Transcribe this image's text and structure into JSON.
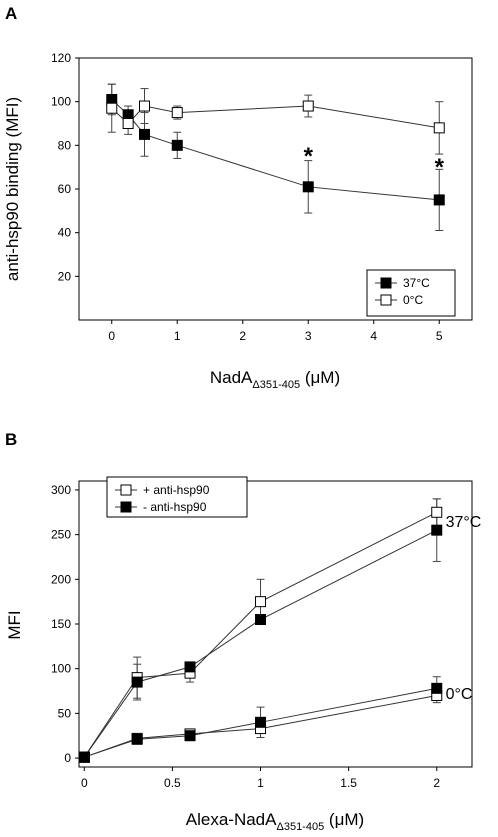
{
  "chart_data": [
    {
      "panel": "A",
      "type": "line",
      "ylabel": "anti-hsp90 binding (MFI)",
      "xlabel_main": "NadA",
      "xlabel_sub": "Δ351-405",
      "xlabel_unit": " (μM)",
      "xlim": [
        -0.5,
        5.5
      ],
      "ylim": [
        0,
        120
      ],
      "xticks": [
        0,
        1,
        2,
        3,
        4,
        5
      ],
      "yticks": [
        20,
        40,
        60,
        80,
        100,
        120
      ],
      "legend_position": "bottom-right",
      "series": [
        {
          "name": "37°C",
          "marker": "filled-square",
          "x": [
            0,
            0.25,
            0.5,
            1,
            3,
            5
          ],
          "y": [
            101,
            94,
            85,
            80,
            61,
            55
          ],
          "err": [
            7,
            4,
            10,
            6,
            12,
            14
          ]
        },
        {
          "name": "0°C",
          "marker": "open-square",
          "x": [
            0,
            0.25,
            0.5,
            1,
            3,
            5
          ],
          "y": [
            97,
            90,
            98,
            95,
            98,
            88
          ],
          "err": [
            11,
            5,
            8,
            3,
            5,
            12
          ]
        }
      ],
      "annotations": [
        {
          "text": "*",
          "x": 3,
          "y": 77
        },
        {
          "text": "*",
          "x": 5,
          "y": 72
        }
      ]
    },
    {
      "panel": "B",
      "type": "line",
      "ylabel": "MFI",
      "xlabel_main": "Alexa-NadA",
      "xlabel_sub": "Δ351-405",
      "xlabel_unit": " (μM)",
      "xlim": [
        -0.03,
        2.2
      ],
      "ylim": [
        -10,
        310
      ],
      "xticks": [
        0,
        0.5,
        1,
        1.5,
        2
      ],
      "yticks": [
        0,
        50,
        100,
        150,
        200,
        250,
        300
      ],
      "legend_position": "top-left",
      "legend": [
        "+ anti-hsp90",
        "- anti-hsp90"
      ],
      "series": [
        {
          "name": "+ anti-hsp90",
          "group": "37°C",
          "marker": "open-square",
          "x": [
            0,
            0.3,
            0.6,
            1,
            2
          ],
          "y": [
            1,
            90,
            95,
            175,
            275
          ],
          "err": [
            0,
            23,
            10,
            25,
            15
          ]
        },
        {
          "name": "- anti-hsp90",
          "group": "37°C",
          "marker": "filled-square",
          "x": [
            0,
            0.3,
            0.6,
            1,
            2
          ],
          "y": [
            1,
            85,
            102,
            155,
            255
          ],
          "err": [
            0,
            20,
            5,
            5,
            35
          ]
        },
        {
          "name": "+ anti-hsp90",
          "group": "0°C",
          "marker": "open-square",
          "x": [
            0,
            0.3,
            0.6,
            1,
            2
          ],
          "y": [
            1,
            22,
            27,
            33,
            70
          ],
          "err": [
            0,
            5,
            5,
            10,
            8
          ]
        },
        {
          "name": "- anti-hsp90",
          "group": "0°C",
          "marker": "filled-square",
          "x": [
            0,
            0.3,
            0.6,
            1,
            2
          ],
          "y": [
            1,
            21,
            25,
            40,
            78
          ],
          "err": [
            0,
            5,
            5,
            17,
            13
          ]
        }
      ],
      "annotations": [
        {
          "text": "37°C",
          "x": 2.05,
          "y": 265
        },
        {
          "text": "0°C",
          "x": 2.05,
          "y": 73
        }
      ]
    }
  ],
  "panel_labels": {
    "a": "A",
    "b": "B"
  }
}
